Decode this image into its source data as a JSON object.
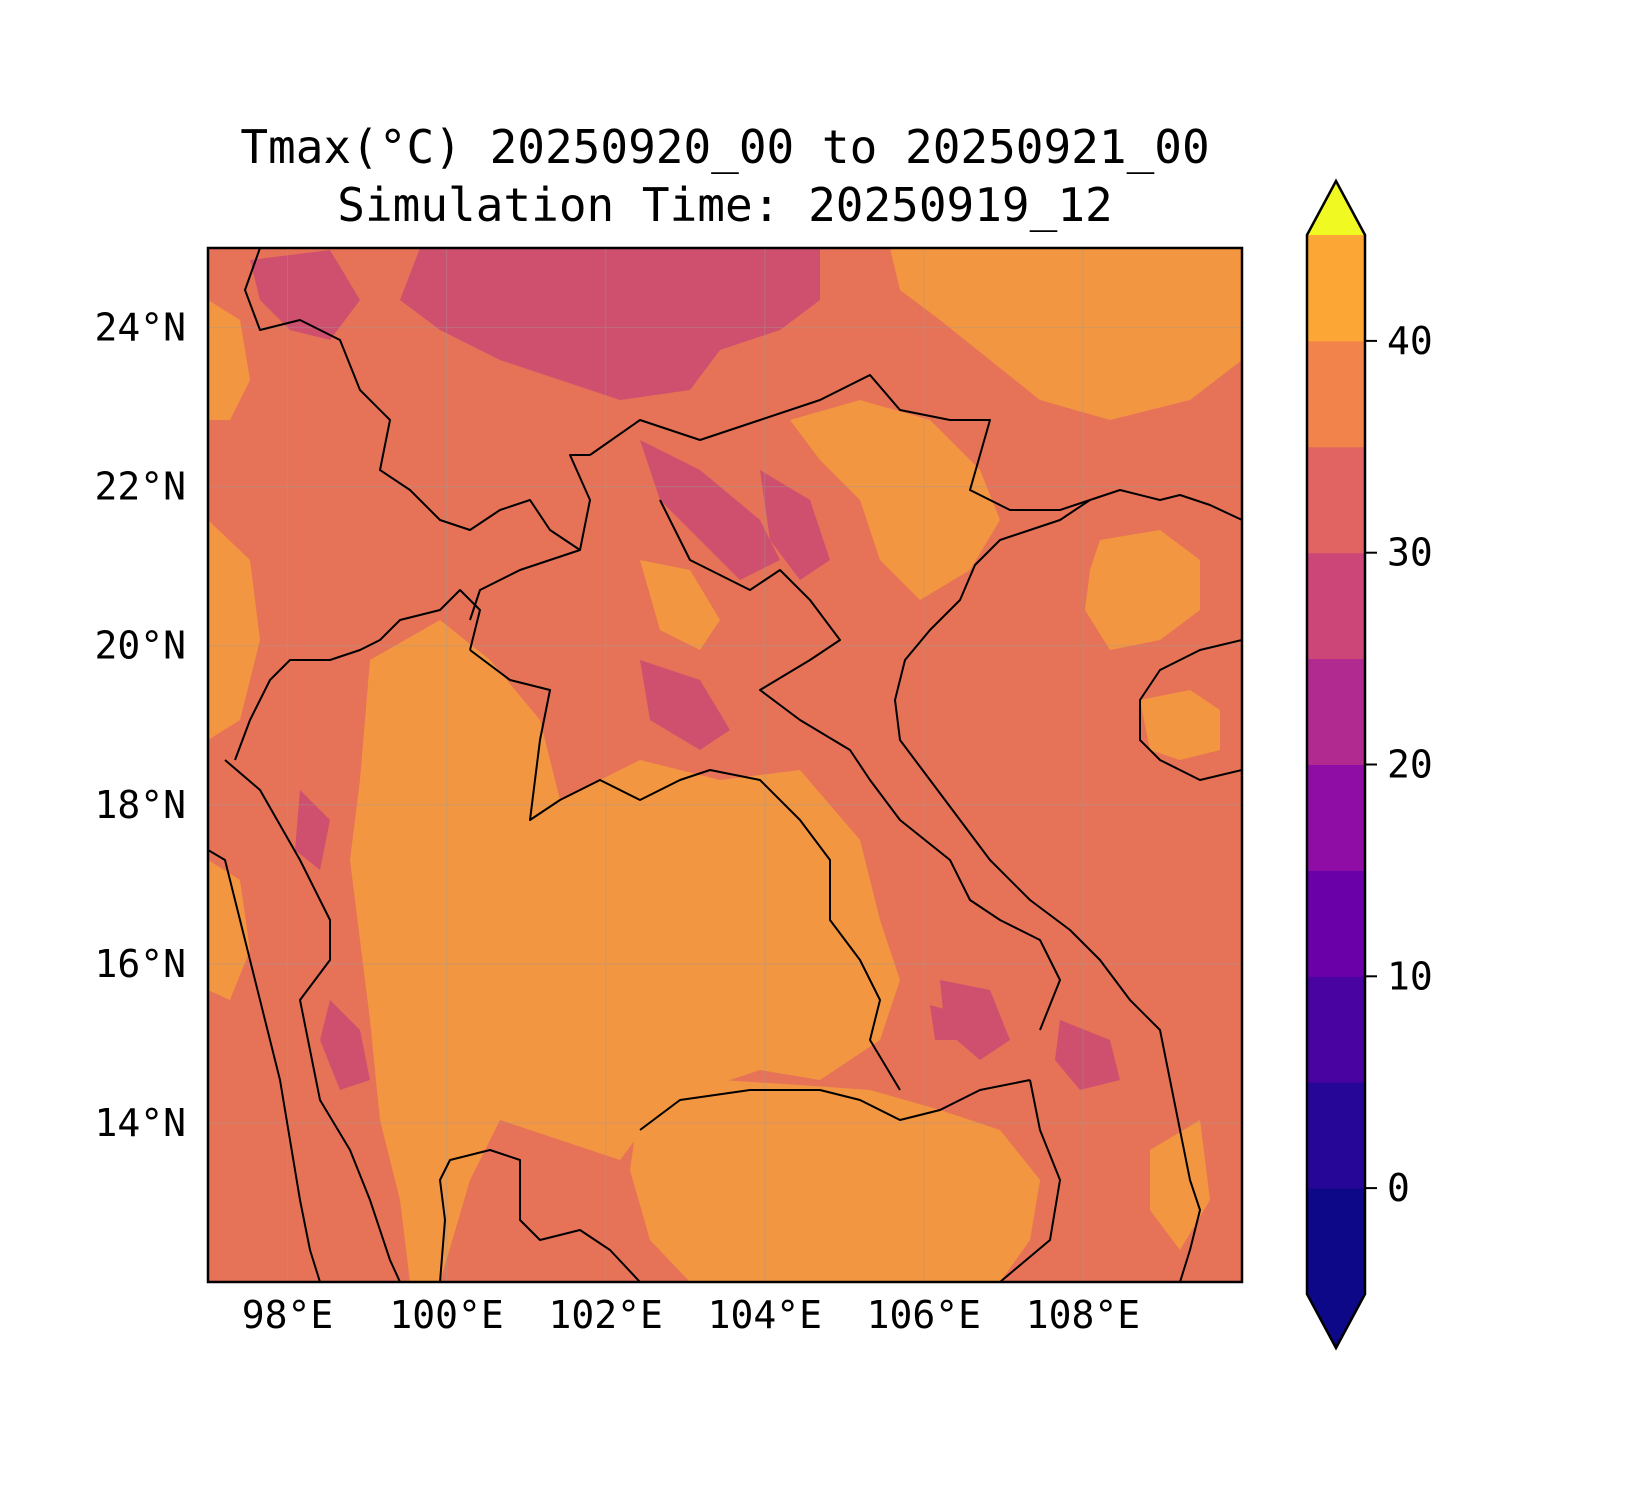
{
  "title": {
    "line1": "Tmax(°C) 20250920_00 to 20250921_00",
    "line2": "Simulation Time: 20250919_12"
  },
  "map": {
    "region": "Mainland Southeast Asia",
    "lon_range": [
      97,
      110
    ],
    "lat_range": [
      12,
      25
    ],
    "lon_ticks": [
      "98°E",
      "100°E",
      "102°E",
      "104°E",
      "106°E",
      "108°E"
    ],
    "lat_ticks": [
      "14°N",
      "16°N",
      "18°N",
      "20°N",
      "22°N",
      "24°N"
    ],
    "gridlines": true,
    "boundaries": "coastlines and country borders in black"
  },
  "colorbar": {
    "variable": "Tmax",
    "units": "°C",
    "extend": "both",
    "tick_labels": [
      "0",
      "10",
      "20",
      "30",
      "40"
    ],
    "levels": [
      -5,
      0,
      5,
      10,
      15,
      20,
      25,
      30,
      35,
      40,
      45
    ],
    "colors": [
      "#0d0887",
      "#260697",
      "#4903a0",
      "#6a00a8",
      "#8f0da4",
      "#b12a90",
      "#cc4778",
      "#e16462",
      "#f2844b",
      "#fca636",
      "#f4e124"
    ],
    "under_color": "#0d0887",
    "over_color": "#f0f921",
    "colormap": "plasma"
  },
  "field_colors": {
    "band_20_25": "#cf4f6f",
    "band_25_30": "#e67357",
    "band_30_35": "#f39641",
    "band_35_40": "#fbb02e"
  }
}
